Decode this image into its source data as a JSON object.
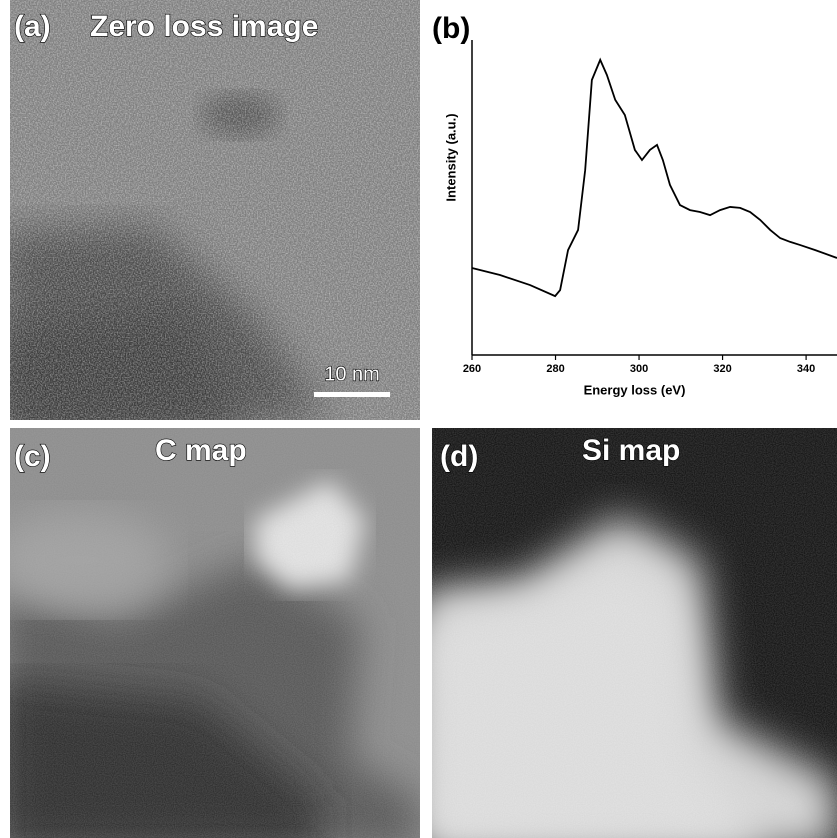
{
  "panels": [
    {
      "label": "(a)",
      "title": "Zero loss image",
      "scale_bar": "10 nm"
    },
    {
      "label": "(b)"
    },
    {
      "label": "(c)",
      "title": "C map"
    },
    {
      "label": "(d)",
      "title": "Si map"
    }
  ],
  "chart_data": {
    "type": "line",
    "xlabel": "Energy loss (eV)",
    "ylabel": "Intensity (a.u.)",
    "x": [
      260,
      266.7,
      273.9,
      279.9,
      281.1,
      283.0,
      285.4,
      287.1,
      288.7,
      290.7,
      292.3,
      294.3,
      296.6,
      299.0,
      300.7,
      302.6,
      304.3,
      305.7,
      307.4,
      309.8,
      312.2,
      314.6,
      317.0,
      319.4,
      321.8,
      324.2,
      326.6,
      329.0,
      331.4,
      333.8,
      336.2,
      338.6,
      342.2,
      347.4
    ],
    "series": [
      {
        "color": "#000000",
        "values": [
          27.6,
          25.4,
          22.2,
          18.7,
          20.6,
          33.3,
          39.7,
          58.7,
          87.3,
          93.7,
          88.9,
          81.0,
          76.2,
          65.1,
          61.9,
          65.1,
          66.7,
          61.9,
          54.0,
          47.6,
          46.0,
          45.4,
          44.4,
          46.0,
          47.0,
          46.7,
          45.4,
          42.9,
          39.7,
          37.1,
          35.9,
          34.9,
          33.3,
          30.8
        ]
      }
    ],
    "xlim": [
      260,
      347.4
    ],
    "xticks": [
      260,
      280,
      300,
      320,
      340
    ],
    "ylim": [
      0,
      100
    ]
  }
}
